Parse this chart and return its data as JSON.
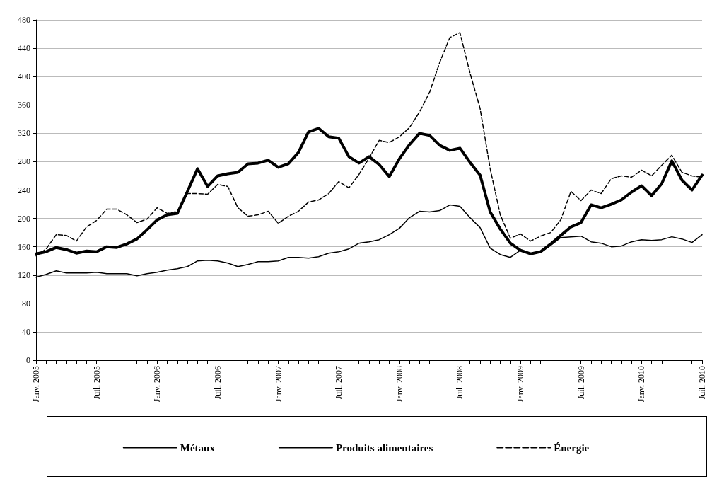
{
  "chart_data": {
    "type": "line",
    "categories": [
      "Janv. 2005",
      null,
      null,
      null,
      null,
      null,
      "Juil. 2005",
      null,
      null,
      null,
      null,
      null,
      "Janv. 2006",
      null,
      null,
      null,
      null,
      null,
      "Juil. 2006",
      null,
      null,
      null,
      null,
      null,
      "Janv. 2007",
      null,
      null,
      null,
      null,
      null,
      "Juil. 2007",
      null,
      null,
      null,
      null,
      null,
      "Janv. 2008",
      null,
      null,
      null,
      null,
      null,
      "Juil. 2008",
      null,
      null,
      null,
      null,
      null,
      "Janv. 2009",
      null,
      null,
      null,
      null,
      null,
      "Juil. 2009",
      null,
      null,
      null,
      null,
      null,
      "Janv. 2010",
      null,
      null,
      null,
      null,
      null,
      "Juil. 2010"
    ],
    "series": [
      {
        "name": "Métaux",
        "color": "#000000",
        "line_style": "solid",
        "values": [
          150,
          153,
          159,
          156,
          151,
          154,
          153,
          160,
          159,
          164,
          171,
          184,
          198,
          205,
          207,
          238,
          270,
          245,
          260,
          263,
          265,
          277,
          278,
          282,
          272,
          277,
          293,
          322,
          327,
          315,
          313,
          287,
          278,
          287,
          276,
          259,
          284,
          304,
          320,
          317,
          303,
          296,
          299,
          279,
          261,
          209,
          185,
          165,
          155,
          150,
          153,
          164,
          176,
          188,
          194,
          219,
          215,
          220,
          226,
          237,
          246,
          232,
          249,
          281,
          254,
          240,
          261
        ]
      },
      {
        "name": "Produits alimentaires",
        "color": "#000000",
        "line_style": "solid",
        "values": [
          117,
          121,
          126,
          123,
          123,
          123,
          124,
          122,
          122,
          122,
          119,
          122,
          124,
          127,
          129,
          132,
          140,
          141,
          140,
          137,
          132,
          135,
          139,
          139,
          140,
          145,
          145,
          144,
          146,
          151,
          153,
          157,
          165,
          167,
          170,
          177,
          186,
          201,
          210,
          209,
          211,
          219,
          217,
          201,
          187,
          158,
          149,
          145,
          155,
          150,
          152,
          162,
          173,
          174,
          175,
          167,
          165,
          160,
          161,
          167,
          170,
          169,
          170,
          174,
          171,
          166,
          177
        ]
      },
      {
        "name": "Énergie",
        "color": "#000000",
        "line_style": "dashed",
        "values": [
          147,
          157,
          177,
          176,
          168,
          188,
          197,
          213,
          213,
          205,
          194,
          199,
          215,
          207,
          210,
          235,
          235,
          234,
          248,
          245,
          215,
          203,
          205,
          210,
          193,
          203,
          210,
          223,
          226,
          235,
          252,
          243,
          262,
          285,
          310,
          307,
          315,
          328,
          350,
          378,
          420,
          455,
          462,
          405,
          355,
          270,
          205,
          172,
          178,
          168,
          175,
          180,
          198,
          238,
          225,
          240,
          235,
          256,
          260,
          258,
          268,
          260,
          275,
          289,
          265,
          260,
          258
        ]
      }
    ],
    "ylim": [
      0,
      480
    ],
    "yticks": [
      0,
      40,
      80,
      120,
      160,
      200,
      240,
      280,
      320,
      360,
      400,
      440,
      480
    ],
    "grid": "y",
    "legend": "bottom",
    "marker": "none"
  }
}
